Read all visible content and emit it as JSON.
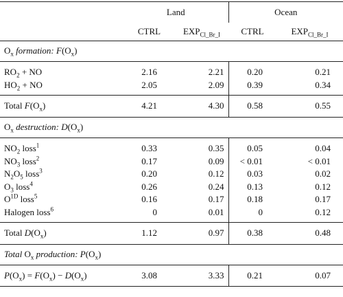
{
  "table": {
    "groups": [
      "Land",
      "Ocean"
    ],
    "columns": [
      [
        {
          "text": "CTRL"
        }
      ],
      [
        {
          "text": "EXP"
        },
        {
          "text": "Cl_Br_I",
          "style": "sub"
        }
      ],
      [
        {
          "text": "CTRL"
        }
      ],
      [
        {
          "text": "EXP"
        },
        {
          "text": "Cl_Br_I",
          "style": "sub"
        }
      ]
    ],
    "sections": [
      {
        "title": [
          {
            "text": "O"
          },
          {
            "text": "x",
            "style": "sub"
          },
          {
            "text": " formation: F",
            "style": "i"
          },
          {
            "text": "(O"
          },
          {
            "text": "x",
            "style": "sub"
          },
          {
            "text": ")"
          }
        ],
        "rows": [
          {
            "label": [
              {
                "text": "RO"
              },
              {
                "text": "2",
                "style": "sub"
              },
              {
                "text": " + NO"
              }
            ],
            "values": [
              "2.16",
              "2.21",
              "0.20",
              "0.21"
            ]
          },
          {
            "label": [
              {
                "text": "HO"
              },
              {
                "text": "2",
                "style": "sub"
              },
              {
                "text": " + NO"
              }
            ],
            "values": [
              "2.05",
              "2.09",
              "0.39",
              "0.34"
            ]
          }
        ],
        "total": {
          "label": [
            {
              "text": "Total "
            },
            {
              "text": "F",
              "style": "i"
            },
            {
              "text": "(O"
            },
            {
              "text": "x",
              "style": "sub"
            },
            {
              "text": ")"
            }
          ],
          "values": [
            "4.21",
            "4.30",
            "0.58",
            "0.55"
          ]
        }
      },
      {
        "title": [
          {
            "text": "O"
          },
          {
            "text": "x",
            "style": "sub"
          },
          {
            "text": " destruction: D",
            "style": "i"
          },
          {
            "text": "(O"
          },
          {
            "text": "x",
            "style": "sub"
          },
          {
            "text": ")"
          }
        ],
        "rows": [
          {
            "label": [
              {
                "text": "NO"
              },
              {
                "text": "2",
                "style": "sub"
              },
              {
                "text": " loss"
              },
              {
                "text": "1",
                "style": "sup"
              }
            ],
            "values": [
              "0.33",
              "0.35",
              "0.05",
              "0.04"
            ]
          },
          {
            "label": [
              {
                "text": "NO"
              },
              {
                "text": "3",
                "style": "sub"
              },
              {
                "text": " loss"
              },
              {
                "text": "2",
                "style": "sup"
              }
            ],
            "values": [
              "0.17",
              "0.09",
              "< 0.01",
              "< 0.01"
            ]
          },
          {
            "label": [
              {
                "text": "N"
              },
              {
                "text": "2",
                "style": "sub"
              },
              {
                "text": "O"
              },
              {
                "text": "5",
                "style": "sub"
              },
              {
                "text": " loss"
              },
              {
                "text": "3",
                "style": "sup"
              }
            ],
            "values": [
              "0.20",
              "0.12",
              "0.03",
              "0.02"
            ]
          },
          {
            "label": [
              {
                "text": "O"
              },
              {
                "text": "3",
                "style": "sub"
              },
              {
                "text": " loss"
              },
              {
                "text": "4",
                "style": "sup"
              }
            ],
            "values": [
              "0.26",
              "0.24",
              "0.13",
              "0.12"
            ]
          },
          {
            "label": [
              {
                "text": "O"
              },
              {
                "text": "1D",
                "style": "sup"
              },
              {
                "text": " loss"
              },
              {
                "text": "5",
                "style": "sup"
              }
            ],
            "values": [
              "0.16",
              "0.17",
              "0.18",
              "0.17"
            ]
          },
          {
            "label": [
              {
                "text": "Halogen loss"
              },
              {
                "text": "6",
                "style": "sup"
              }
            ],
            "values": [
              "0",
              "0.01",
              "0",
              "0.12"
            ]
          }
        ],
        "total": {
          "label": [
            {
              "text": "Total "
            },
            {
              "text": "D",
              "style": "i"
            },
            {
              "text": "(O"
            },
            {
              "text": "x",
              "style": "sub"
            },
            {
              "text": ")"
            }
          ],
          "values": [
            "1.12",
            "0.97",
            "0.38",
            "0.48"
          ]
        }
      },
      {
        "title": [
          {
            "text": "Total ",
            "style": "i"
          },
          {
            "text": "O"
          },
          {
            "text": "x",
            "style": "sub"
          },
          {
            "text": " production: P",
            "style": "i"
          },
          {
            "text": "(O"
          },
          {
            "text": "x",
            "style": "sub"
          },
          {
            "text": ")"
          }
        ],
        "rows": [
          {
            "label": [
              {
                "text": "P",
                "style": "i"
              },
              {
                "text": "(O"
              },
              {
                "text": "x",
                "style": "sub"
              },
              {
                "text": ") = "
              },
              {
                "text": "F",
                "style": "i"
              },
              {
                "text": "(O"
              },
              {
                "text": "x",
                "style": "sub"
              },
              {
                "text": ") − "
              },
              {
                "text": "D",
                "style": "i"
              },
              {
                "text": "(O"
              },
              {
                "text": "x",
                "style": "sub"
              },
              {
                "text": ")"
              }
            ],
            "values": [
              "3.08",
              "3.33",
              "0.21",
              "0.07"
            ]
          }
        ]
      }
    ]
  }
}
